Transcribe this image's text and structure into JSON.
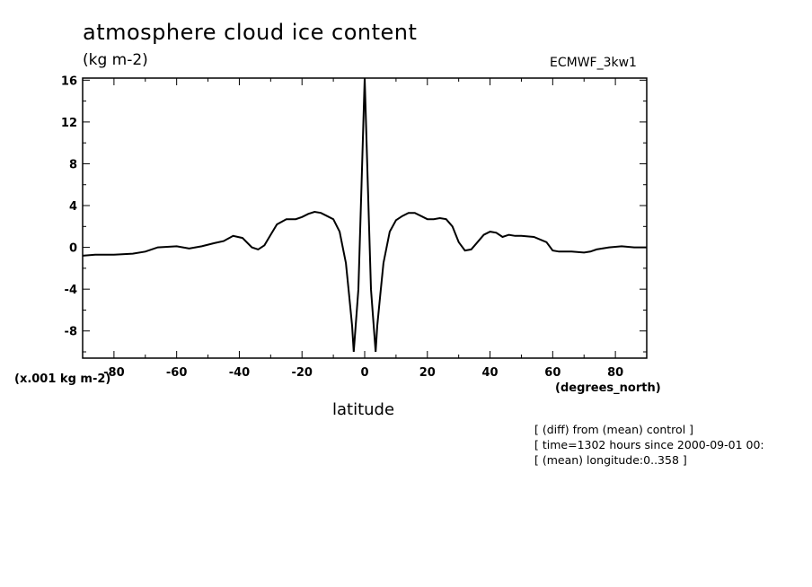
{
  "chart_data": {
    "type": "line",
    "title": "atmosphere cloud ice content",
    "ylabel": "(kg m-2)",
    "ylabel_scale": "(x.001 kg m-2)",
    "xlabel": "latitude",
    "xlabel_units": "(degrees_north)",
    "dataset_label": "ECMWF_3kw1",
    "xlim": [
      -90,
      90
    ],
    "ylim": [
      -10.6,
      16.2
    ],
    "xticks_major": [
      -80,
      -60,
      -40,
      -20,
      0,
      20,
      40,
      60,
      80
    ],
    "xtick_labels": [
      "-80",
      "-60",
      "-40",
      "-20",
      "0",
      "20",
      "40",
      "60",
      "80"
    ],
    "yticks_major": [
      -8,
      -4,
      0,
      4,
      8,
      12,
      16
    ],
    "ytick_labels": [
      "-8",
      "-4",
      "0",
      "4",
      "8",
      "12",
      "16"
    ],
    "grid": false,
    "series": [
      {
        "x": [
          -90,
          -86,
          -80,
          -74,
          -70,
          -66,
          -60,
          -56,
          -52,
          -48,
          -45,
          -42,
          -39,
          -36,
          -34,
          -32,
          -30,
          -28,
          -25,
          -22,
          -20,
          -18,
          -16,
          -14,
          -12,
          -10,
          -8,
          -6,
          -5,
          -4,
          -3.5,
          -2,
          -1,
          0,
          1,
          2,
          3.5,
          4,
          5,
          6,
          8,
          10,
          12,
          14,
          16,
          18,
          20,
          22,
          24,
          26,
          28,
          30,
          32,
          34,
          36,
          38,
          40,
          42,
          44,
          46,
          48,
          50,
          54,
          58,
          60,
          62,
          64,
          66,
          70,
          72,
          74,
          78,
          82,
          86,
          90
        ],
        "y": [
          -0.8,
          -0.7,
          -0.7,
          -0.6,
          -0.4,
          0.0,
          0.1,
          -0.1,
          0.1,
          0.4,
          0.6,
          1.1,
          0.9,
          0.0,
          -0.2,
          0.2,
          1.2,
          2.2,
          2.7,
          2.7,
          2.9,
          3.2,
          3.4,
          3.3,
          3.0,
          2.7,
          1.5,
          -1.5,
          -4.5,
          -7.5,
          -10.0,
          -4.0,
          6.0,
          16.2,
          6.0,
          -4.0,
          -10.0,
          -7.5,
          -4.5,
          -1.5,
          1.5,
          2.6,
          3.0,
          3.3,
          3.3,
          3.0,
          2.7,
          2.7,
          2.8,
          2.7,
          2.0,
          0.5,
          -0.3,
          -0.2,
          0.5,
          1.2,
          1.5,
          1.4,
          1.0,
          1.2,
          1.1,
          1.1,
          1.0,
          0.5,
          -0.3,
          -0.4,
          -0.4,
          -0.4,
          -0.5,
          -0.4,
          -0.2,
          0.0,
          0.1,
          0.0,
          0.0
        ]
      }
    ]
  },
  "info": {
    "line1": "[ (diff) from (mean) control ]",
    "line2": "[ time=1302 hours since 2000-09-01 00:",
    "line3": "[ (mean) longitude:0..358 ]"
  }
}
